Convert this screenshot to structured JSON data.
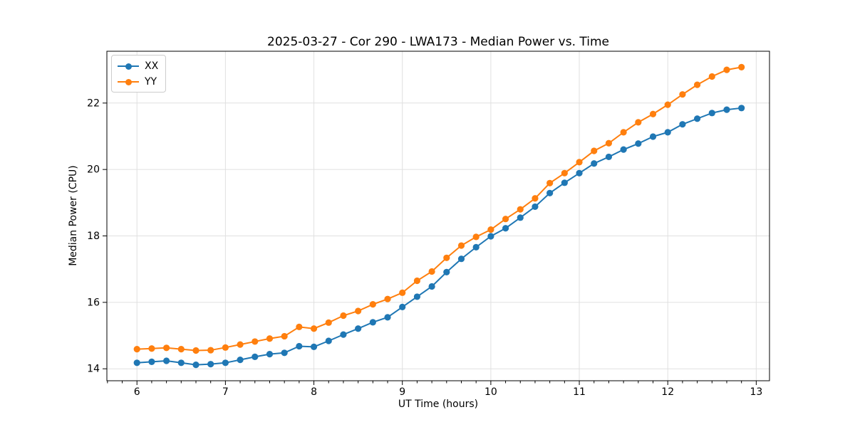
{
  "figure": {
    "background": "#ffffff",
    "grid_color": "#e0e0e0",
    "spine_color": "#000000"
  },
  "chart_data": {
    "type": "line",
    "title": "2025-03-27 - Cor 290 - LWA173 - Median Power vs. Time",
    "xlabel": "UT Time (hours)",
    "ylabel": "Median Power (CPU)",
    "xlim": [
      5.66,
      13.15
    ],
    "ylim": [
      13.64,
      23.56
    ],
    "xticks": [
      6,
      7,
      8,
      9,
      10,
      11,
      12,
      13
    ],
    "yticks": [
      14,
      16,
      18,
      20,
      22
    ],
    "x_minor_step": 0.166667,
    "grid": true,
    "legend_position": "upper-left",
    "marker": "circle",
    "x": [
      6.0,
      6.1667,
      6.3333,
      6.5,
      6.6667,
      6.8333,
      7.0,
      7.1667,
      7.3333,
      7.5,
      7.6667,
      7.8333,
      8.0,
      8.1667,
      8.3333,
      8.5,
      8.6667,
      8.8333,
      9.0,
      9.1667,
      9.3333,
      9.5,
      9.6667,
      9.8333,
      10.0,
      10.1667,
      10.3333,
      10.5,
      10.6667,
      10.8333,
      11.0,
      11.1667,
      11.3333,
      11.5,
      11.6667,
      11.8333,
      12.0,
      12.1667,
      12.3333,
      12.5,
      12.6667,
      12.8333
    ],
    "series": [
      {
        "name": "XX",
        "color": "#1f77b4",
        "values": [
          14.18,
          14.21,
          14.24,
          14.18,
          14.12,
          14.14,
          14.18,
          14.27,
          14.36,
          14.44,
          14.48,
          14.68,
          14.66,
          14.84,
          15.03,
          15.21,
          15.4,
          15.55,
          15.86,
          16.17,
          16.48,
          16.91,
          17.31,
          17.66,
          17.99,
          18.23,
          18.55,
          18.88,
          19.29,
          19.6,
          19.89,
          20.18,
          20.38,
          20.6,
          20.78,
          20.99,
          21.12,
          21.36,
          21.53,
          21.7,
          21.8,
          21.85
        ]
      },
      {
        "name": "YY",
        "color": "#ff7f0e",
        "values": [
          14.59,
          14.61,
          14.63,
          14.59,
          14.55,
          14.56,
          14.64,
          14.73,
          14.82,
          14.91,
          14.98,
          15.26,
          15.21,
          15.39,
          15.6,
          15.74,
          15.94,
          16.1,
          16.29,
          16.65,
          16.93,
          17.34,
          17.71,
          17.97,
          18.19,
          18.51,
          18.8,
          19.13,
          19.59,
          19.89,
          20.22,
          20.56,
          20.79,
          21.12,
          21.42,
          21.67,
          21.95,
          22.26,
          22.55,
          22.8,
          23.0,
          23.08
        ]
      }
    ]
  }
}
